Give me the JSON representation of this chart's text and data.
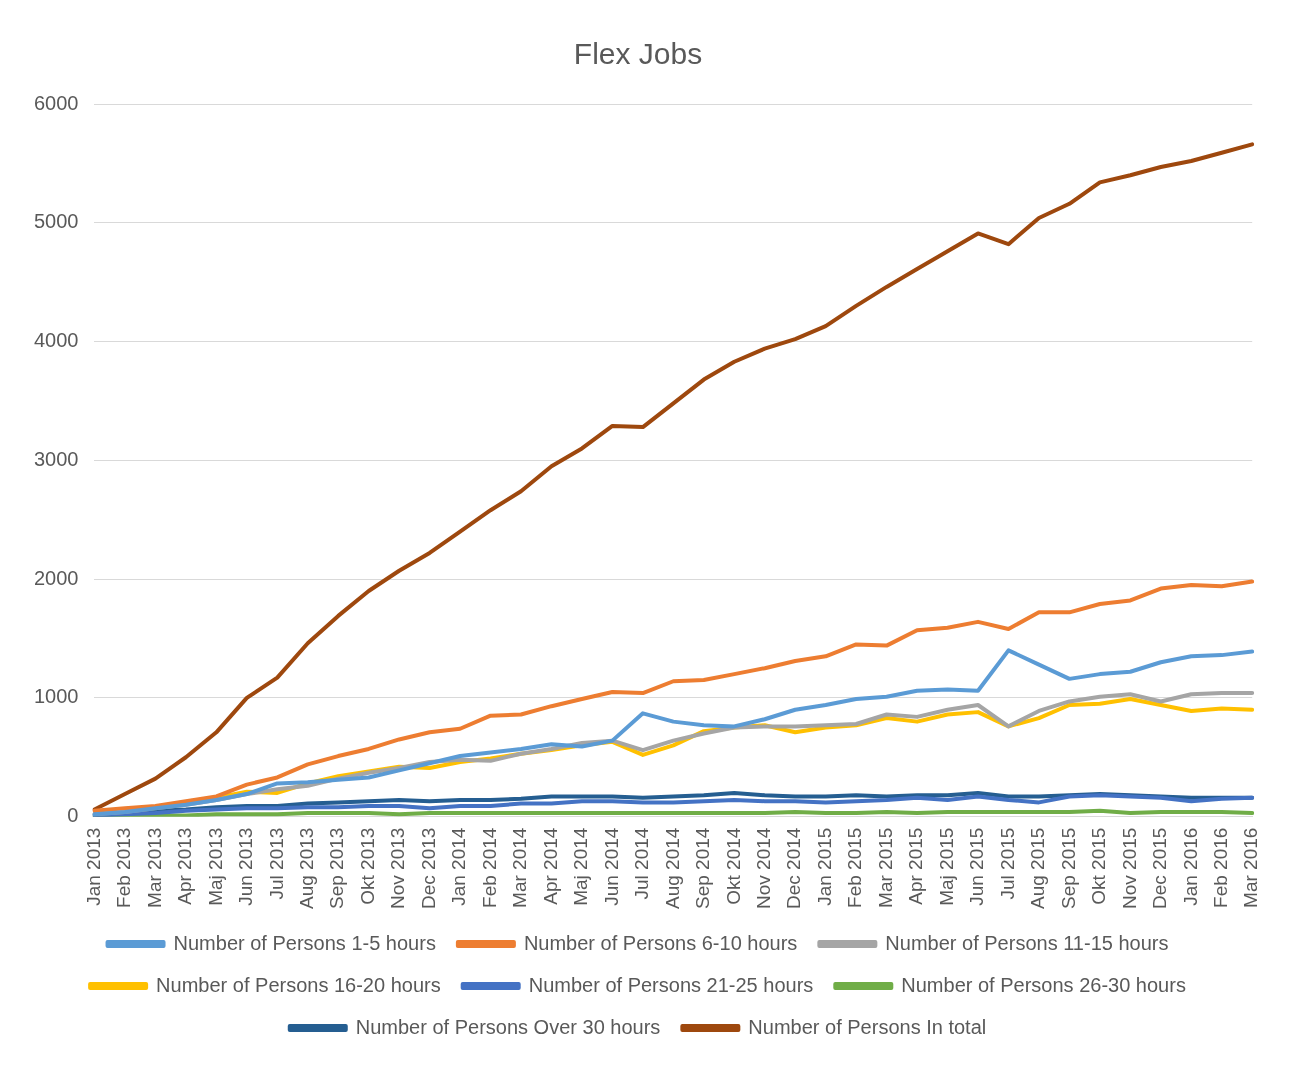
{
  "chart_data": {
    "type": "line",
    "title": "Flex Jobs",
    "categories": [
      "Jan 2013",
      "Feb 2013",
      "Mar 2013",
      "Apr 2013",
      "Maj 2013",
      "Jun 2013",
      "Jul 2013",
      "Aug 2013",
      "Sep 2013",
      "Okt 2013",
      "Nov 2013",
      "Dec 2013",
      "Jan 2014",
      "Feb 2014",
      "Mar 2014",
      "Apr 2014",
      "Maj 2014",
      "Jun 2014",
      "Jul 2014",
      "Aug 2014",
      "Sep 2014",
      "Okt 2014",
      "Nov 2014",
      "Dec 2014",
      "Jan 2015",
      "Feb 2015",
      "Mar 2015",
      "Apr 2015",
      "Maj 2015",
      "Jun 2015",
      "Jul 2015",
      "Aug 2015",
      "Sep 2015",
      "Okt 2015",
      "Nov 2015",
      "Dec 2015",
      "Jan 2016",
      "Feb 2016",
      "Mar 2016"
    ],
    "series": [
      {
        "name": "Number of Persons 1-5 hours",
        "color": "#5b9bd5",
        "values": [
          20,
          40,
          70,
          100,
          140,
          190,
          280,
          290,
          310,
          330,
          390,
          450,
          510,
          540,
          570,
          610,
          590,
          640,
          870,
          800,
          770,
          760,
          820,
          900,
          940,
          990,
          1010,
          1060,
          1070,
          1060,
          1400,
          1280,
          1160,
          1200,
          1220,
          1300,
          1350,
          1360,
          1390
        ]
      },
      {
        "name": "Number of Persons 6-10 hours",
        "color": "#ed7d31",
        "values": [
          50,
          70,
          90,
          130,
          170,
          270,
          330,
          440,
          510,
          570,
          650,
          710,
          740,
          850,
          860,
          930,
          990,
          1050,
          1040,
          1140,
          1150,
          1200,
          1250,
          1310,
          1350,
          1450,
          1440,
          1570,
          1590,
          1640,
          1580,
          1720,
          1720,
          1790,
          1820,
          1920,
          1950,
          1940,
          1980
        ]
      },
      {
        "name": "Number of Persons 11-15 hours",
        "color": "#a5a5a5",
        "values": [
          20,
          40,
          70,
          100,
          140,
          190,
          230,
          260,
          320,
          370,
          410,
          460,
          480,
          470,
          530,
          570,
          620,
          640,
          560,
          640,
          700,
          750,
          760,
          760,
          770,
          780,
          860,
          840,
          900,
          940,
          760,
          890,
          970,
          1010,
          1030,
          970,
          1030,
          1040,
          1040
        ]
      },
      {
        "name": "Number of Persons 16-20 hours",
        "color": "#ffc000",
        "values": [
          null,
          null,
          null,
          120,
          160,
          210,
          200,
          280,
          340,
          380,
          420,
          410,
          460,
          490,
          530,
          560,
          600,
          630,
          520,
          600,
          720,
          750,
          770,
          710,
          750,
          770,
          830,
          800,
          860,
          880,
          760,
          830,
          940,
          950,
          990,
          940,
          890,
          910,
          900
        ]
      },
      {
        "name": "Number of Persons 21-25 hours",
        "color": "#4472c4",
        "values": [
          10,
          20,
          30,
          50,
          60,
          70,
          70,
          80,
          80,
          90,
          90,
          70,
          90,
          90,
          110,
          110,
          130,
          130,
          120,
          120,
          130,
          140,
          130,
          130,
          120,
          130,
          140,
          160,
          140,
          170,
          140,
          120,
          170,
          180,
          170,
          160,
          130,
          150,
          160
        ]
      },
      {
        "name": "Number of Persons 26-30 hours",
        "color": "#70ad47",
        "values": [
          0,
          0,
          10,
          10,
          20,
          20,
          20,
          30,
          30,
          30,
          20,
          30,
          30,
          30,
          30,
          30,
          30,
          30,
          30,
          30,
          30,
          30,
          30,
          40,
          30,
          30,
          40,
          30,
          40,
          40,
          40,
          40,
          40,
          50,
          30,
          40,
          40,
          40,
          30
        ]
      },
      {
        "name": "Number of Persons Over 30 hours",
        "color": "#255e91",
        "values": [
          20,
          30,
          50,
          60,
          80,
          90,
          90,
          110,
          120,
          130,
          140,
          130,
          140,
          140,
          150,
          170,
          170,
          170,
          160,
          170,
          180,
          200,
          180,
          170,
          170,
          180,
          170,
          180,
          180,
          200,
          170,
          170,
          180,
          190,
          180,
          170,
          160,
          160,
          160
        ]
      },
      {
        "name": "Number of Persons In total",
        "color": "#9e480e",
        "values": [
          60,
          190,
          320,
          500,
          710,
          1000,
          1170,
          1460,
          1690,
          1900,
          2070,
          2220,
          2400,
          2580,
          2740,
          2950,
          3100,
          3290,
          3280,
          3480,
          3680,
          3830,
          3940,
          4020,
          4130,
          4300,
          4460,
          4610,
          4760,
          4910,
          4820,
          5040,
          5160,
          5340,
          5400,
          5470,
          5520,
          5590,
          5660
        ]
      }
    ],
    "ylim": [
      0,
      6000
    ],
    "yticks": [
      0,
      1000,
      2000,
      3000,
      4000,
      5000,
      6000
    ],
    "grid": "y",
    "legend": "bottom",
    "marker": "none",
    "line_style": "solid"
  }
}
